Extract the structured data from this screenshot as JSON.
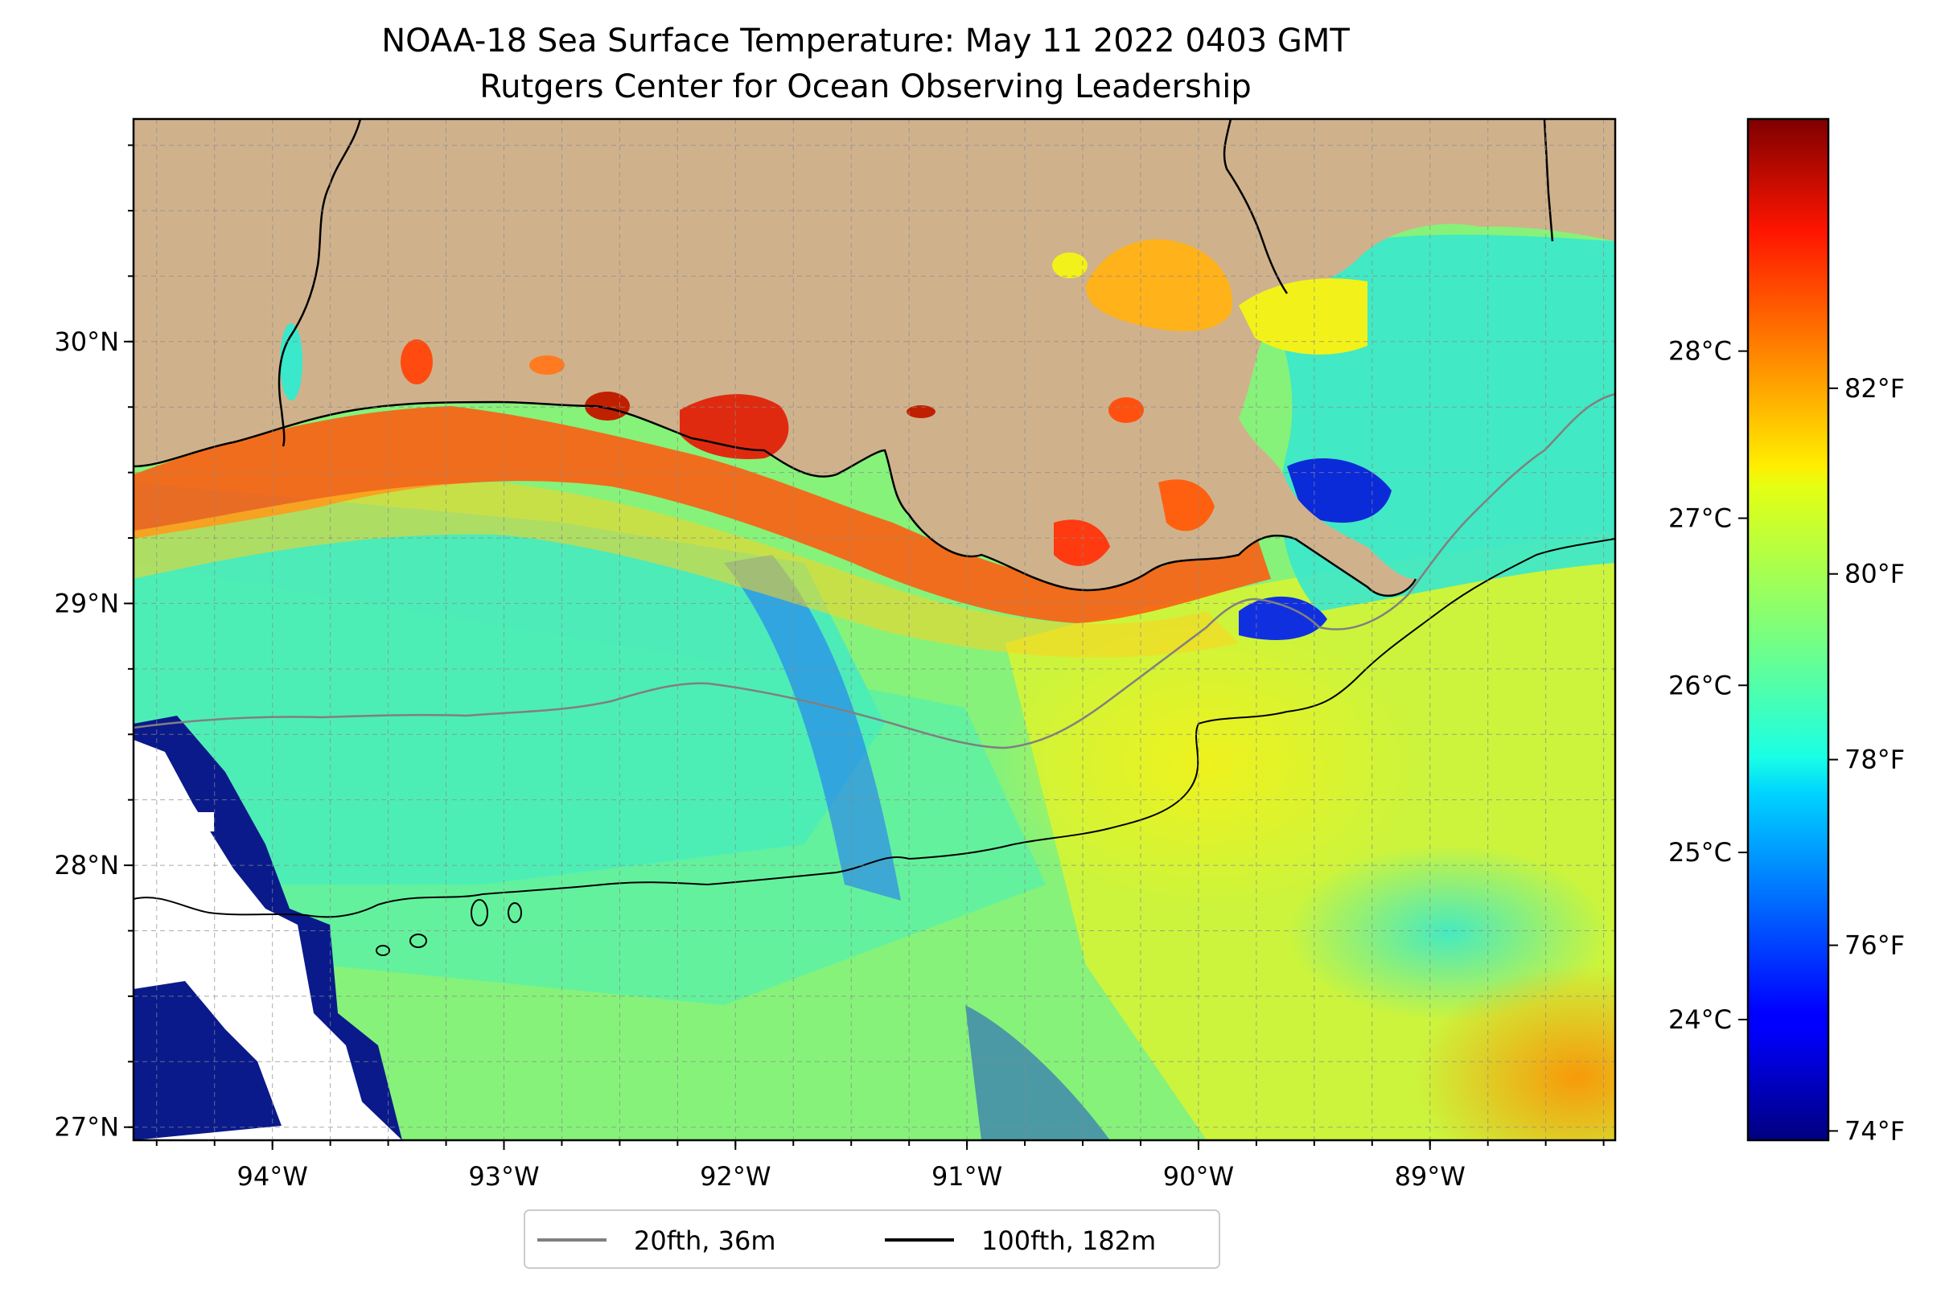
{
  "title": {
    "line1": "NOAA-18 Sea Surface Temperature: May 11 2022 0403 GMT",
    "line2": "Rutgers Center for Ocean Observing Leadership"
  },
  "map": {
    "lon_range": [
      -94.6,
      -88.2
    ],
    "lat_range": [
      26.95,
      30.85
    ],
    "lon_ticks": [
      {
        "value": -94,
        "label": "94°W"
      },
      {
        "value": -93,
        "label": "93°W"
      },
      {
        "value": -92,
        "label": "92°W"
      },
      {
        "value": -91,
        "label": "91°W"
      },
      {
        "value": -90,
        "label": "90°W"
      },
      {
        "value": -89,
        "label": "89°W"
      }
    ],
    "lat_ticks": [
      {
        "value": 27,
        "label": "27°N"
      },
      {
        "value": 28,
        "label": "28°N"
      },
      {
        "value": 29,
        "label": "29°N"
      },
      {
        "value": 30,
        "label": "30°N"
      }
    ],
    "grid": true,
    "land_color": "#cfb28c",
    "no_data_color": "#ffffff"
  },
  "colorbar": {
    "colormap": "jet",
    "range_f": [
      73.9,
      84.9
    ],
    "celsius_ticks": [
      {
        "value": 24,
        "label": "24°C"
      },
      {
        "value": 25,
        "label": "25°C"
      },
      {
        "value": 26,
        "label": "26°C"
      },
      {
        "value": 27,
        "label": "27°C"
      },
      {
        "value": 28,
        "label": "28°C"
      }
    ],
    "fahrenheit_ticks": [
      {
        "value": 74,
        "label": "74°F"
      },
      {
        "value": 76,
        "label": "76°F"
      },
      {
        "value": 78,
        "label": "78°F"
      },
      {
        "value": 80,
        "label": "80°F"
      },
      {
        "value": 82,
        "label": "82°F"
      }
    ]
  },
  "legend": {
    "items": [
      {
        "label": "20fth, 36m",
        "color": "#808080"
      },
      {
        "label": "100fth, 182m",
        "color": "#000000"
      }
    ]
  }
}
